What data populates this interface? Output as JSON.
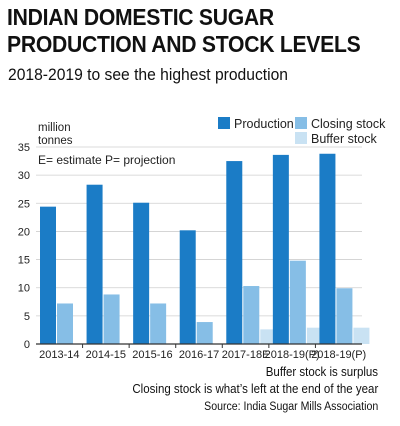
{
  "title": "INDIAN DOMESTIC SUGAR PRODUCTION AND STOCK LEVELS",
  "subtitle": "2018-2019 to see the highest production",
  "notes": {
    "buffer": "Buffer stock is surplus",
    "closing": "Closing stock is what’s left at the end of the year",
    "source": "Source: India Sugar Mills Association"
  },
  "colors": {
    "production": "#1b7cc6",
    "closing": "#86bee6",
    "buffer": "#c9e2f3",
    "grid": "#cfcfcf",
    "axis": "#333333"
  },
  "chart_data": {
    "type": "bar",
    "ylabel": "million tonnes",
    "annotation": "E= estimate P= projection",
    "ylim": [
      0,
      35
    ],
    "yticks": [
      0,
      5,
      10,
      15,
      20,
      25,
      30,
      35
    ],
    "grid": true,
    "legend_position": "top-right",
    "categories": [
      "2013-14",
      "2014-15",
      "2015-16",
      "2016-17",
      "2017-18E",
      "2018-19(P)",
      "2018-19(P)"
    ],
    "series": [
      {
        "name": "Production",
        "values": [
          24.4,
          28.3,
          25.1,
          20.2,
          32.5,
          33.6,
          33.8
        ]
      },
      {
        "name": "Closing stock",
        "values": [
          7.2,
          8.8,
          7.2,
          3.9,
          10.3,
          14.8,
          9.9
        ]
      },
      {
        "name": "Buffer stock",
        "values": [
          null,
          null,
          null,
          null,
          2.6,
          2.9,
          2.9
        ]
      }
    ]
  }
}
